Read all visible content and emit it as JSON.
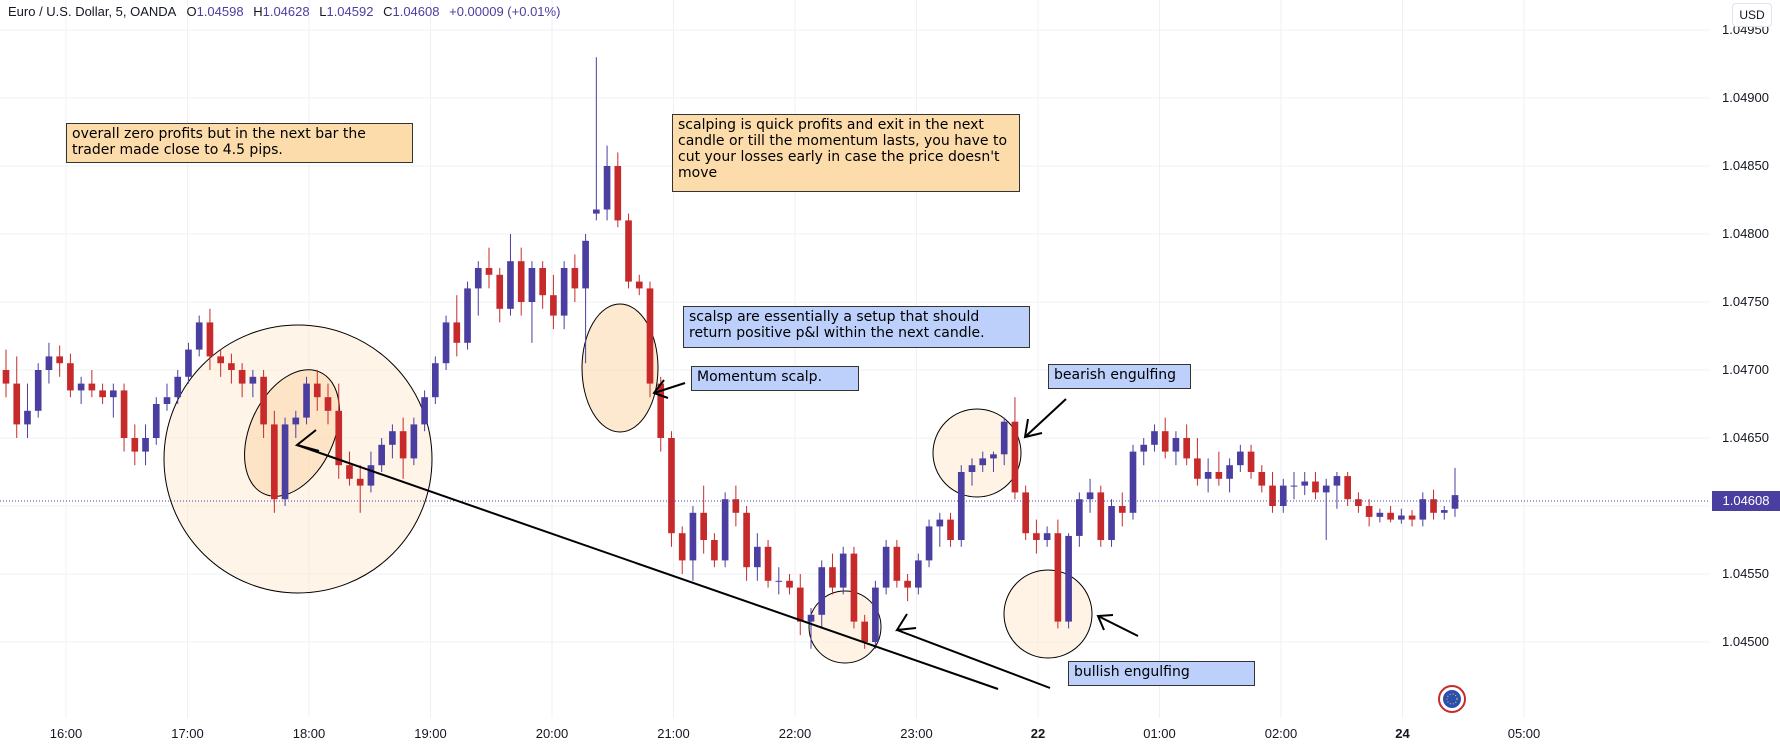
{
  "header": {
    "symbol": "Euro / U.S. Dollar, 5, OANDA",
    "o_label": "O",
    "o_value": "1.04598",
    "h_label": "H",
    "h_value": "1.04628",
    "l_label": "L",
    "l_value": "1.04592",
    "c_label": "C",
    "c_value": "1.04608",
    "change": "+0.00009 (+0.01%)"
  },
  "currency_button": "USD",
  "current_price_label": "1.04608",
  "colors": {
    "up": "#4a3fa0",
    "down": "#c62a2a",
    "circle_fill": "#fdebd3",
    "orange_note": "#fddcab",
    "blue_note": "#bcd0fb"
  },
  "chart_data": {
    "type": "candlestick",
    "ylim": [
      1.0445,
      1.0495
    ],
    "y_ticks": [
      "1.04950",
      "1.04900",
      "1.04850",
      "1.04800",
      "1.04750",
      "1.04700",
      "1.04650",
      "1.04600",
      "1.04550",
      "1.04500"
    ],
    "x_ticks": [
      "16:00",
      "17:00",
      "18:00",
      "19:00",
      "20:00",
      "21:00",
      "22:00",
      "23:00",
      "22",
      "01:00",
      "02:00",
      "24",
      "05:00"
    ],
    "grid": true,
    "candles": [
      [
        1.047,
        1.04715,
        1.0468,
        1.0469
      ],
      [
        1.0469,
        1.0471,
        1.0465,
        1.0466
      ],
      [
        1.0466,
        1.0469,
        1.0465,
        1.0467
      ],
      [
        1.0467,
        1.04705,
        1.04665,
        1.047
      ],
      [
        1.047,
        1.0472,
        1.0469,
        1.0471
      ],
      [
        1.0471,
        1.04718,
        1.04695,
        1.04705
      ],
      [
        1.04705,
        1.04712,
        1.0468,
        1.04685
      ],
      [
        1.04685,
        1.04695,
        1.04675,
        1.0469
      ],
      [
        1.0469,
        1.047,
        1.0468,
        1.04685
      ],
      [
        1.04685,
        1.0469,
        1.04675,
        1.0468
      ],
      [
        1.0468,
        1.0469,
        1.04665,
        1.04685
      ],
      [
        1.04685,
        1.0469,
        1.0464,
        1.0465
      ],
      [
        1.0465,
        1.0466,
        1.0463,
        1.0464
      ],
      [
        1.0464,
        1.0466,
        1.0463,
        1.0465
      ],
      [
        1.0465,
        1.0468,
        1.04645,
        1.04675
      ],
      [
        1.04675,
        1.0469,
        1.0467,
        1.0468
      ],
      [
        1.0468,
        1.047,
        1.04675,
        1.04695
      ],
      [
        1.04695,
        1.0472,
        1.0469,
        1.04715
      ],
      [
        1.04715,
        1.0474,
        1.0471,
        1.04735
      ],
      [
        1.04735,
        1.04745,
        1.047,
        1.0471
      ],
      [
        1.0471,
        1.04715,
        1.04695,
        1.04705
      ],
      [
        1.04705,
        1.04712,
        1.0469,
        1.047
      ],
      [
        1.047,
        1.04705,
        1.0468,
        1.0469
      ],
      [
        1.0469,
        1.047,
        1.0468,
        1.04695
      ],
      [
        1.04695,
        1.047,
        1.0465,
        1.0466
      ],
      [
        1.0466,
        1.0467,
        1.04595,
        1.04605
      ],
      [
        1.04605,
        1.04665,
        1.046,
        1.0466
      ],
      [
        1.0466,
        1.0467,
        1.0465,
        1.04665
      ],
      [
        1.04665,
        1.04695,
        1.0466,
        1.0469
      ],
      [
        1.0469,
        1.047,
        1.0467,
        1.0468
      ],
      [
        1.0468,
        1.0469,
        1.0466,
        1.0467
      ],
      [
        1.0467,
        1.0469,
        1.0462,
        1.0463
      ],
      [
        1.0463,
        1.0464,
        1.04615,
        1.0462
      ],
      [
        1.0462,
        1.0463,
        1.04595,
        1.04615
      ],
      [
        1.04615,
        1.0464,
        1.0461,
        1.0463
      ],
      [
        1.0463,
        1.0465,
        1.04625,
        1.04645
      ],
      [
        1.04645,
        1.0466,
        1.04635,
        1.04655
      ],
      [
        1.04655,
        1.04665,
        1.0462,
        1.04635
      ],
      [
        1.04635,
        1.04665,
        1.0463,
        1.0466
      ],
      [
        1.0466,
        1.04685,
        1.04655,
        1.0468
      ],
      [
        1.0468,
        1.0471,
        1.04675,
        1.04705
      ],
      [
        1.04705,
        1.0474,
        1.047,
        1.04735
      ],
      [
        1.04735,
        1.04755,
        1.0471,
        1.0472
      ],
      [
        1.0472,
        1.04765,
        1.04715,
        1.0476
      ],
      [
        1.0476,
        1.0478,
        1.0474,
        1.04775
      ],
      [
        1.04775,
        1.0479,
        1.0476,
        1.0477
      ],
      [
        1.0477,
        1.04775,
        1.04735,
        1.04745
      ],
      [
        1.04745,
        1.048,
        1.0474,
        1.0478
      ],
      [
        1.0478,
        1.0479,
        1.0474,
        1.0475
      ],
      [
        1.0475,
        1.0478,
        1.0472,
        1.04775
      ],
      [
        1.04775,
        1.0478,
        1.04745,
        1.04755
      ],
      [
        1.04755,
        1.0477,
        1.0473,
        1.0474
      ],
      [
        1.0474,
        1.0478,
        1.0473,
        1.04775
      ],
      [
        1.04775,
        1.04785,
        1.0475,
        1.0476
      ],
      [
        1.0476,
        1.048,
        1.04705,
        1.04795
      ],
      [
        1.04815,
        1.0493,
        1.0481,
        1.04818
      ],
      [
        1.04818,
        1.04865,
        1.0481,
        1.0485
      ],
      [
        1.0485,
        1.0486,
        1.04805,
        1.0481
      ],
      [
        1.0481,
        1.04815,
        1.0476,
        1.04765
      ],
      [
        1.04765,
        1.0477,
        1.04755,
        1.0476
      ],
      [
        1.0476,
        1.04765,
        1.0468,
        1.0469
      ],
      [
        1.0469,
        1.04695,
        1.0464,
        1.0465
      ],
      [
        1.0465,
        1.04655,
        1.0457,
        1.0458
      ],
      [
        1.0458,
        1.04585,
        1.0455,
        1.0456
      ],
      [
        1.0456,
        1.046,
        1.04545,
        1.04595
      ],
      [
        1.04595,
        1.04615,
        1.04565,
        1.04575
      ],
      [
        1.04575,
        1.0458,
        1.04555,
        1.0456
      ],
      [
        1.0456,
        1.0461,
        1.04555,
        1.04605
      ],
      [
        1.04605,
        1.04615,
        1.04585,
        1.04595
      ],
      [
        1.04595,
        1.046,
        1.04545,
        1.04555
      ],
      [
        1.04555,
        1.0458,
        1.04545,
        1.0457
      ],
      [
        1.0457,
        1.04575,
        1.0454,
        1.04545
      ],
      [
        1.04545,
        1.04555,
        1.04535,
        1.04545
      ],
      [
        1.04545,
        1.0455,
        1.04535,
        1.0454
      ],
      [
        1.0454,
        1.0455,
        1.04505,
        1.04515
      ],
      [
        1.04515,
        1.04525,
        1.04495,
        1.0452
      ],
      [
        1.0452,
        1.0456,
        1.0451,
        1.04555
      ],
      [
        1.04555,
        1.04565,
        1.04535,
        1.0454
      ],
      [
        1.0454,
        1.0457,
        1.04535,
        1.04565
      ],
      [
        1.04565,
        1.0457,
        1.0451,
        1.04515
      ],
      [
        1.04515,
        1.0452,
        1.04495,
        1.045
      ],
      [
        1.045,
        1.04545,
        1.04495,
        1.0454
      ],
      [
        1.0454,
        1.04575,
        1.04535,
        1.0457
      ],
      [
        1.0457,
        1.04575,
        1.0454,
        1.04545
      ],
      [
        1.04545,
        1.0455,
        1.0453,
        1.0454
      ],
      [
        1.0454,
        1.04565,
        1.04535,
        1.0456
      ],
      [
        1.0456,
        1.0459,
        1.04555,
        1.04585
      ],
      [
        1.04585,
        1.04595,
        1.0457,
        1.0459
      ],
      [
        1.0459,
        1.04595,
        1.0457,
        1.04575
      ],
      [
        1.04575,
        1.0463,
        1.0457,
        1.04625
      ],
      [
        1.04625,
        1.04635,
        1.04615,
        1.0463
      ],
      [
        1.0463,
        1.0464,
        1.04625,
        1.04635
      ],
      [
        1.04635,
        1.0464,
        1.04625,
        1.04638
      ],
      [
        1.04638,
        1.04665,
        1.0463,
        1.04662
      ],
      [
        1.04662,
        1.0468,
        1.04605,
        1.0461
      ],
      [
        1.0461,
        1.04615,
        1.04575,
        1.0458
      ],
      [
        1.0458,
        1.0459,
        1.04565,
        1.04575
      ],
      [
        1.04575,
        1.04585,
        1.0457,
        1.0458
      ],
      [
        1.0458,
        1.0459,
        1.0451,
        1.04515
      ],
      [
        1.04515,
        1.0458,
        1.0451,
        1.04578
      ],
      [
        1.04578,
        1.0461,
        1.0457,
        1.04605
      ],
      [
        1.04605,
        1.0462,
        1.04595,
        1.0461
      ],
      [
        1.0461,
        1.04615,
        1.0457,
        1.04575
      ],
      [
        1.04575,
        1.04605,
        1.0457,
        1.046
      ],
      [
        1.046,
        1.0461,
        1.04585,
        1.04595
      ],
      [
        1.04595,
        1.04645,
        1.0459,
        1.0464
      ],
      [
        1.0464,
        1.0465,
        1.0463,
        1.04645
      ],
      [
        1.04645,
        1.0466,
        1.0464,
        1.04655
      ],
      [
        1.04655,
        1.04665,
        1.04635,
        1.0464
      ],
      [
        1.0464,
        1.04655,
        1.0463,
        1.0465
      ],
      [
        1.0465,
        1.0466,
        1.0463,
        1.04635
      ],
      [
        1.04635,
        1.0465,
        1.04615,
        1.0462
      ],
      [
        1.0462,
        1.04635,
        1.0461,
        1.04625
      ],
      [
        1.04625,
        1.0464,
        1.04615,
        1.0462
      ],
      [
        1.0462,
        1.04635,
        1.0461,
        1.0463
      ],
      [
        1.0463,
        1.04645,
        1.04625,
        1.0464
      ],
      [
        1.0464,
        1.04645,
        1.0462,
        1.04625
      ],
      [
        1.04625,
        1.0463,
        1.0461,
        1.04615
      ],
      [
        1.04615,
        1.04625,
        1.04595,
        1.046
      ],
      [
        1.046,
        1.0462,
        1.04595,
        1.04615
      ],
      [
        1.04615,
        1.04625,
        1.04605,
        1.04615
      ],
      [
        1.04615,
        1.04625,
        1.04608,
        1.04618
      ],
      [
        1.04618,
        1.04625,
        1.04605,
        1.0461
      ],
      [
        1.0461,
        1.0462,
        1.04575,
        1.04615
      ],
      [
        1.04615,
        1.04625,
        1.04598,
        1.04622
      ],
      [
        1.04622,
        1.04625,
        1.046,
        1.04605
      ],
      [
        1.04605,
        1.0461,
        1.04595,
        1.046
      ],
      [
        1.046,
        1.04605,
        1.04585,
        1.04592
      ],
      [
        1.04592,
        1.04598,
        1.04588,
        1.04595
      ],
      [
        1.04595,
        1.046,
        1.04588,
        1.0459
      ],
      [
        1.0459,
        1.04598,
        1.04587,
        1.04593
      ],
      [
        1.04593,
        1.04597,
        1.04585,
        1.0459
      ],
      [
        1.0459,
        1.0461,
        1.04585,
        1.04605
      ],
      [
        1.04605,
        1.04612,
        1.0459,
        1.04595
      ],
      [
        1.04595,
        1.046,
        1.0459,
        1.04597
      ],
      [
        1.04598,
        1.04628,
        1.04592,
        1.04608
      ]
    ]
  },
  "annotations": {
    "note1": "overall zero profits but in the next bar the trader made close to 4.5 pips.",
    "note2": "scalping is quick profits and exit in the next candle or till the momentum lasts, you have to cut your losses early in case the price doesn't move",
    "note3": "scalsp are essentially a setup that should return positive p&l within the next candle.",
    "note4": "Momentum scalp.",
    "note5": "bearish engulfing",
    "note6": "bullish engulfing"
  }
}
